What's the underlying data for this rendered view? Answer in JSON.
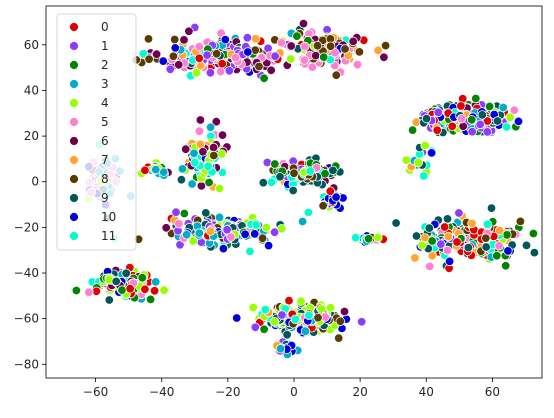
{
  "chart_data": {
    "type": "scatter",
    "title": "",
    "xlabel": "",
    "ylabel": "",
    "xlim": [
      -75,
      75
    ],
    "ylim": [
      -86,
      77
    ],
    "xticks": [
      -60,
      -40,
      -20,
      0,
      20,
      40,
      60
    ],
    "yticks": [
      -80,
      -60,
      -40,
      -20,
      0,
      20,
      40,
      60
    ],
    "grid": false,
    "legend_position": "top-left",
    "series": [
      {
        "name": "0",
        "color": "#e00000"
      },
      {
        "name": "1",
        "color": "#8c3cff"
      },
      {
        "name": "2",
        "color": "#028401"
      },
      {
        "name": "3",
        "color": "#00acc6"
      },
      {
        "name": "4",
        "color": "#98ff00"
      },
      {
        "name": "5",
        "color": "#ff7fd1"
      },
      {
        "name": "6",
        "color": "#6c004f"
      },
      {
        "name": "7",
        "color": "#ffa530"
      },
      {
        "name": "8",
        "color": "#583b00"
      },
      {
        "name": "9",
        "color": "#005659"
      },
      {
        "name": "10",
        "color": "#0000dd"
      },
      {
        "name": "11",
        "color": "#00fdcf"
      }
    ],
    "clusters": [
      {
        "x": -22,
        "y": 55,
        "sx": 14,
        "sy": 6,
        "n": 260,
        "dominant": [
          1,
          6,
          5,
          8
        ]
      },
      {
        "x": 10,
        "y": 58,
        "sx": 9,
        "sy": 6,
        "n": 140,
        "dominant": [
          6,
          7,
          8,
          5
        ]
      },
      {
        "x": 52,
        "y": 28,
        "sx": 10,
        "sy": 5,
        "n": 240,
        "dominant": [
          0,
          1,
          2,
          9
        ]
      },
      {
        "x": -27,
        "y": 10,
        "sx": 4,
        "sy": 9,
        "n": 110,
        "dominant": [
          3,
          6,
          4,
          11
        ]
      },
      {
        "x": 2,
        "y": 4,
        "sx": 7,
        "sy": 4,
        "n": 140,
        "dominant": [
          2,
          8,
          9,
          11
        ]
      },
      {
        "x": -58,
        "y": 0,
        "sx": 4,
        "sy": 8,
        "n": 60,
        "dominant": [
          5,
          1,
          10,
          3
        ]
      },
      {
        "x": -42,
        "y": 5,
        "sx": 3,
        "sy": 2,
        "n": 20,
        "dominant": [
          4,
          3,
          9
        ]
      },
      {
        "x": 12,
        "y": -8,
        "sx": 3,
        "sy": 3,
        "n": 25,
        "dominant": [
          3,
          10,
          11
        ]
      },
      {
        "x": -22,
        "y": -22,
        "sx": 12,
        "sy": 5,
        "n": 190,
        "dominant": [
          1,
          3,
          9,
          4
        ]
      },
      {
        "x": 52,
        "y": -25,
        "sx": 12,
        "sy": 8,
        "n": 200,
        "dominant": [
          0,
          2,
          7,
          9
        ]
      },
      {
        "x": -52,
        "y": -45,
        "sx": 7,
        "sy": 4,
        "n": 140,
        "dominant": [
          9,
          2,
          4,
          0
        ]
      },
      {
        "x": 2,
        "y": -60,
        "sx": 9,
        "sy": 5,
        "n": 200,
        "dominant": [
          8,
          9,
          4,
          10
        ]
      },
      {
        "x": 23,
        "y": -25,
        "sx": 3,
        "sy": 1,
        "n": 20,
        "dominant": [
          3,
          10
        ]
      },
      {
        "x": 38,
        "y": 8,
        "sx": 3,
        "sy": 5,
        "n": 18,
        "dominant": [
          11,
          3,
          4
        ]
      },
      {
        "x": -3,
        "y": -73,
        "sx": 2.5,
        "sy": 2,
        "n": 20,
        "dominant": [
          5,
          1,
          10
        ]
      }
    ]
  }
}
